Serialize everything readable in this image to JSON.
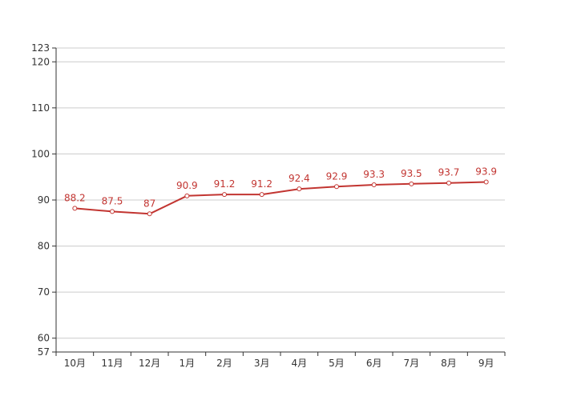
{
  "chart_data": {
    "type": "line",
    "categories": [
      "10月",
      "11月",
      "12月",
      "1月",
      "2月",
      "3月",
      "4月",
      "5月",
      "6月",
      "7月",
      "8月",
      "9月"
    ],
    "series": [
      {
        "values": [
          88.2,
          87.5,
          87,
          90.9,
          91.2,
          91.2,
          92.4,
          92.9,
          93.3,
          93.5,
          93.7,
          93.9
        ]
      }
    ],
    "data_labels": [
      "88.2",
      "87.5",
      "87",
      "90.9",
      "91.2",
      "91.2",
      "92.4",
      "92.9",
      "93.3",
      "93.5",
      "93.7",
      "93.9"
    ],
    "y_ticks": [
      "57",
      "60",
      "70",
      "80",
      "90",
      "100",
      "110",
      "120",
      "123"
    ],
    "ylim": [
      57,
      123
    ],
    "grid": true,
    "line_color": "#c23531",
    "axis_color": "#333333",
    "grid_color": "#cccccc"
  }
}
